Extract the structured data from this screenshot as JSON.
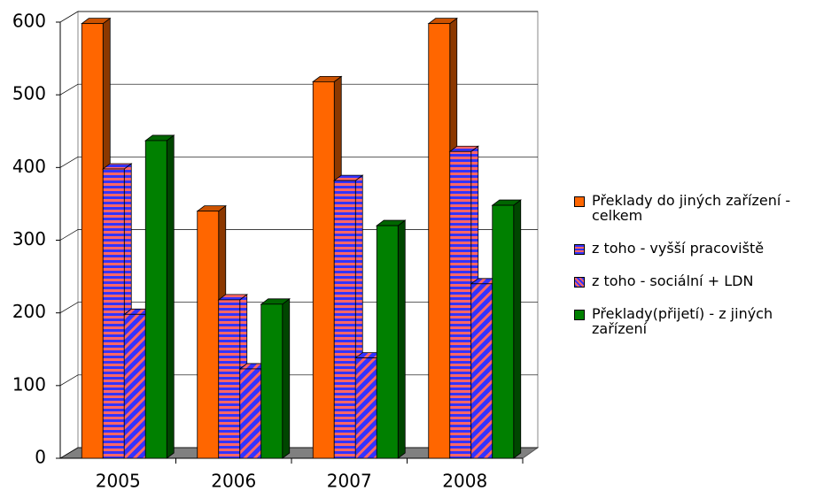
{
  "chart_data": {
    "type": "bar3d",
    "categories": [
      "2005",
      "2006",
      "2007",
      "2008"
    ],
    "series": [
      {
        "name": "Překlady do jiných zařízení - celkem",
        "color": "#ff6600",
        "pattern": "solid",
        "values": [
          598,
          340,
          518,
          598
        ]
      },
      {
        "name": "z toho - vyšší pracoviště",
        "color": "#ff6666",
        "pattern": "horizontal-stripes",
        "values": [
          398,
          218,
          382,
          422
        ]
      },
      {
        "name": "z toho - sociální + LDN",
        "color": "#3333ff",
        "pattern": "diagonal-stripes",
        "values": [
          198,
          123,
          138,
          240
        ]
      },
      {
        "name": "Překlady(přijetí) - z jiných zařízení",
        "color": "#008000",
        "pattern": "solid",
        "values": [
          437,
          212,
          320,
          348
        ]
      }
    ],
    "ylim": [
      0,
      600
    ],
    "yticks": [
      0,
      100,
      200,
      300,
      400,
      500,
      600
    ],
    "grid": true,
    "legend": "right"
  }
}
